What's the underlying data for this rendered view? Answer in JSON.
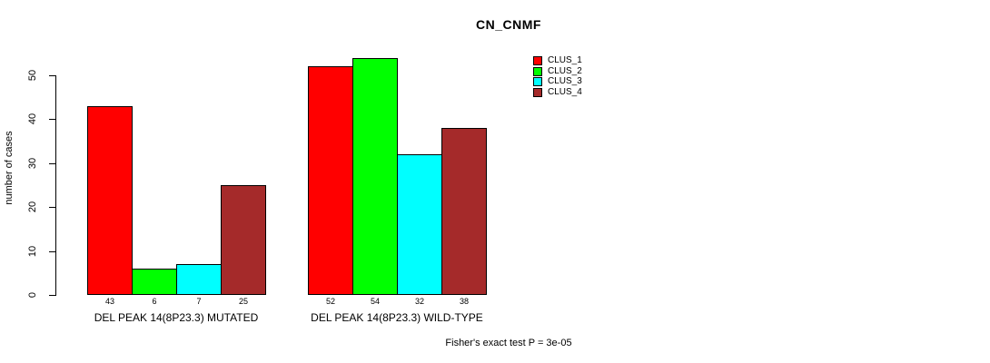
{
  "chart_data": {
    "type": "bar",
    "title": "CN_CNMF",
    "ylabel": "number of cases",
    "xlabel": "",
    "ylim": [
      0,
      50
    ],
    "yticks": [
      0,
      10,
      20,
      30,
      40,
      50
    ],
    "grid": false,
    "legend_position": "top-right",
    "categories": [
      "DEL PEAK 14(8P23.3) MUTATED",
      "DEL PEAK 14(8P23.3) WILD-TYPE"
    ],
    "series": [
      {
        "name": "CLUS_1",
        "color": "#FF0000",
        "values": [
          43,
          52
        ]
      },
      {
        "name": "CLUS_2",
        "color": "#00FF00",
        "values": [
          6,
          54
        ]
      },
      {
        "name": "CLUS_3",
        "color": "#00FFFF",
        "values": [
          7,
          32
        ]
      },
      {
        "name": "CLUS_4",
        "color": "#A52A2A",
        "values": [
          25,
          38
        ]
      }
    ],
    "bar_value_labels": [
      [
        43,
        6,
        7,
        25
      ],
      [
        52,
        54,
        32,
        38
      ]
    ],
    "annotation": "Fisher's exact test P = 3e-05"
  },
  "colors": {
    "background": "#FFFFFF",
    "axis": "#000000",
    "text": "#000000"
  }
}
